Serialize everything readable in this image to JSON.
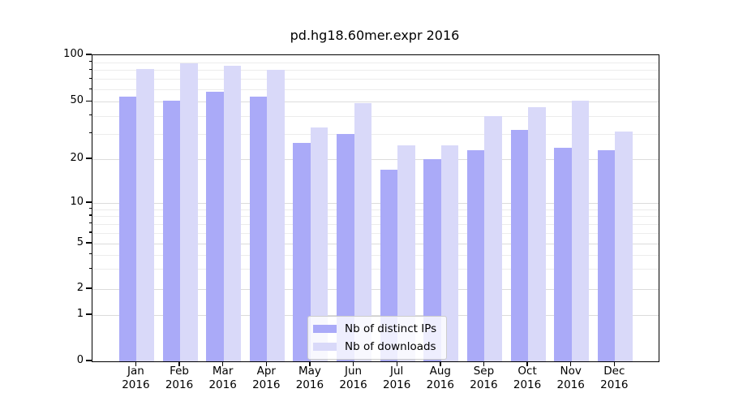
{
  "title": "pd.hg18.60mer.expr 2016",
  "chart_data": {
    "type": "bar",
    "title": "pd.hg18.60mer.expr 2016",
    "categories": [
      "Jan",
      "Feb",
      "Mar",
      "Apr",
      "May",
      "Jun",
      "Jul",
      "Aug",
      "Sep",
      "Oct",
      "Nov",
      "Dec"
    ],
    "year_label": "2016",
    "series": [
      {
        "name": "Nb of distinct IPs",
        "color": "#aaaaf8",
        "values": [
          54,
          51,
          58,
          54,
          26,
          30,
          17,
          20,
          23,
          32,
          24,
          23
        ]
      },
      {
        "name": "Nb of downloads",
        "color": "#d9d9f9",
        "values": [
          81,
          89,
          85,
          80,
          33,
          49,
          25,
          25,
          40,
          46,
          51,
          31
        ]
      }
    ],
    "xlabel": "",
    "ylabel": "",
    "ylim": [
      0,
      100
    ],
    "yscale": "log-like with linear 0-1 segment",
    "y_ticks": [
      0,
      1,
      2,
      5,
      10,
      20,
      50,
      100
    ],
    "y_minor_gridlines": [
      3,
      4,
      6,
      7,
      8,
      9,
      30,
      40,
      60,
      70,
      80,
      90
    ],
    "grid": true,
    "legend_position": "lower center inside plot"
  },
  "colors": {
    "bar_distinct_ips": "#aaaaf8",
    "bar_downloads": "#d9d9f9",
    "grid_major": "#dcdcdc",
    "grid_minor": "#ececec",
    "axis": "#000000",
    "legend_border": "#cccccc",
    "background": "#ffffff"
  }
}
